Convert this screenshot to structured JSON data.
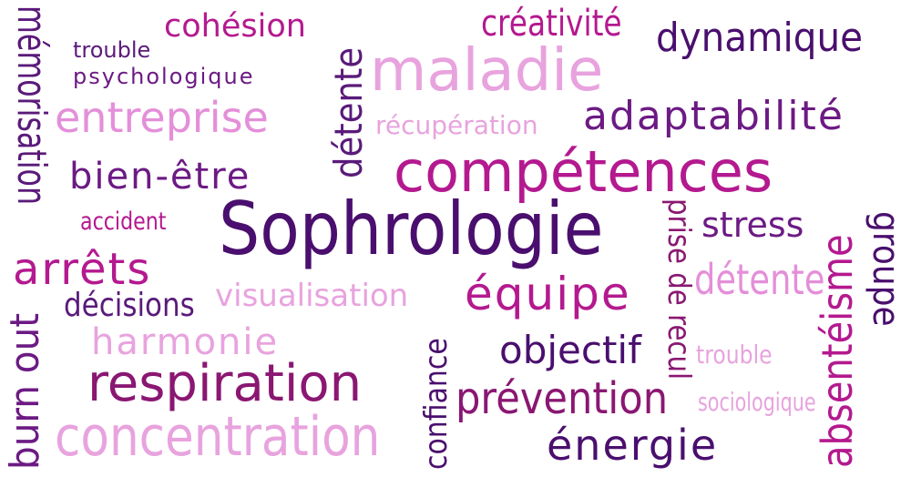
{
  "words": {
    "memorisation": "mémorisation",
    "cohesion": "cohésion",
    "trouble_top": "trouble",
    "psychologique": "psychologique",
    "entreprise": "entreprise",
    "detente_vert": "détente",
    "creativite": "créativité",
    "dynamique": "dynamique",
    "maladie": "maladie",
    "recuperation": "récupération",
    "adaptabilite": "adaptabilité",
    "bien_etre": "bien-être",
    "competences": "compétences",
    "accident": "accident",
    "sophrologie": "Sophrologie",
    "prise_de_recul": "prise de recul",
    "stress": "stress",
    "absenteisme": "absentéisme",
    "groupe": "groupe",
    "arrets": "arrêts",
    "burn_out": "burn out",
    "decisions": "décisions",
    "visualisation": "visualisation",
    "equipe": "équipe",
    "detente_right": "détente",
    "harmonie": "harmonie",
    "confiance": "confiance",
    "objectif": "objectif",
    "trouble_right": "trouble",
    "respiration": "respiration",
    "prevention": "prévention",
    "sociologique": "sociologique",
    "concentration": "concentration",
    "energie": "énergie"
  },
  "colors": {
    "dark_purple": "#4a0f6e",
    "purple": "#6c1a84",
    "magenta": "#b4198f",
    "deep_magenta": "#8a1772",
    "pink": "#e48fd9",
    "light_pink": "#e8a3de",
    "violet": "#5a1a7a"
  }
}
